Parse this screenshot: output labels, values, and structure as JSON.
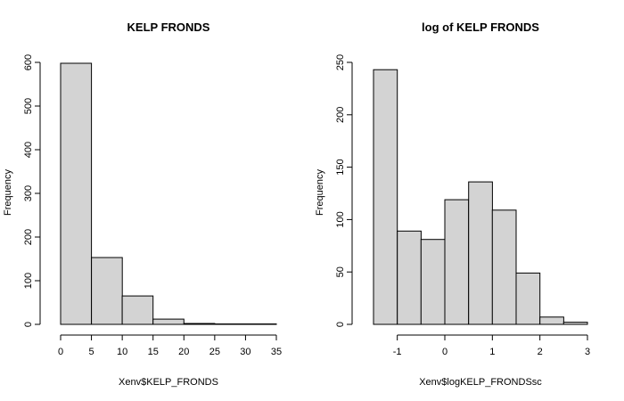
{
  "chart_data": [
    {
      "type": "bar",
      "title": "KELP FRONDS",
      "xlabel": "Xenv$KELP_FRONDS",
      "ylabel": "Frequency",
      "bins": [
        {
          "x0": 0,
          "x1": 5,
          "count": 598
        },
        {
          "x0": 5,
          "x1": 10,
          "count": 153
        },
        {
          "x0": 10,
          "x1": 15,
          "count": 65
        },
        {
          "x0": 15,
          "x1": 20,
          "count": 12
        },
        {
          "x0": 20,
          "x1": 25,
          "count": 2
        },
        {
          "x0": 25,
          "x1": 30,
          "count": 1
        },
        {
          "x0": 30,
          "x1": 35,
          "count": 1
        }
      ],
      "xlim": [
        0,
        35
      ],
      "ylim": [
        0,
        600
      ],
      "xticks": [
        0,
        5,
        10,
        15,
        20,
        25,
        30,
        35
      ],
      "yticks": [
        0,
        100,
        200,
        300,
        400,
        500,
        600
      ],
      "grid": false,
      "bar_color": "#d3d3d3"
    },
    {
      "type": "bar",
      "title": "log of KELP FRONDS",
      "xlabel": "Xenv$logKELP_FRONDSsc",
      "ylabel": "Frequency",
      "bins": [
        {
          "x0": -1.5,
          "x1": -1.0,
          "count": 243
        },
        {
          "x0": -1.0,
          "x1": -0.5,
          "count": 89
        },
        {
          "x0": -0.5,
          "x1": 0.0,
          "count": 81
        },
        {
          "x0": 0.0,
          "x1": 0.5,
          "count": 119
        },
        {
          "x0": 0.5,
          "x1": 1.0,
          "count": 136
        },
        {
          "x0": 1.0,
          "x1": 1.5,
          "count": 109
        },
        {
          "x0": 1.5,
          "x1": 2.0,
          "count": 49
        },
        {
          "x0": 2.0,
          "x1": 2.5,
          "count": 7
        },
        {
          "x0": 2.5,
          "x1": 3.0,
          "count": 2
        }
      ],
      "xlim": [
        -1.5,
        3
      ],
      "ylim": [
        0,
        250
      ],
      "xticks": [
        -1,
        0,
        1,
        2,
        3
      ],
      "yticks": [
        0,
        50,
        100,
        150,
        200,
        250
      ],
      "grid": false,
      "bar_color": "#d3d3d3"
    }
  ]
}
